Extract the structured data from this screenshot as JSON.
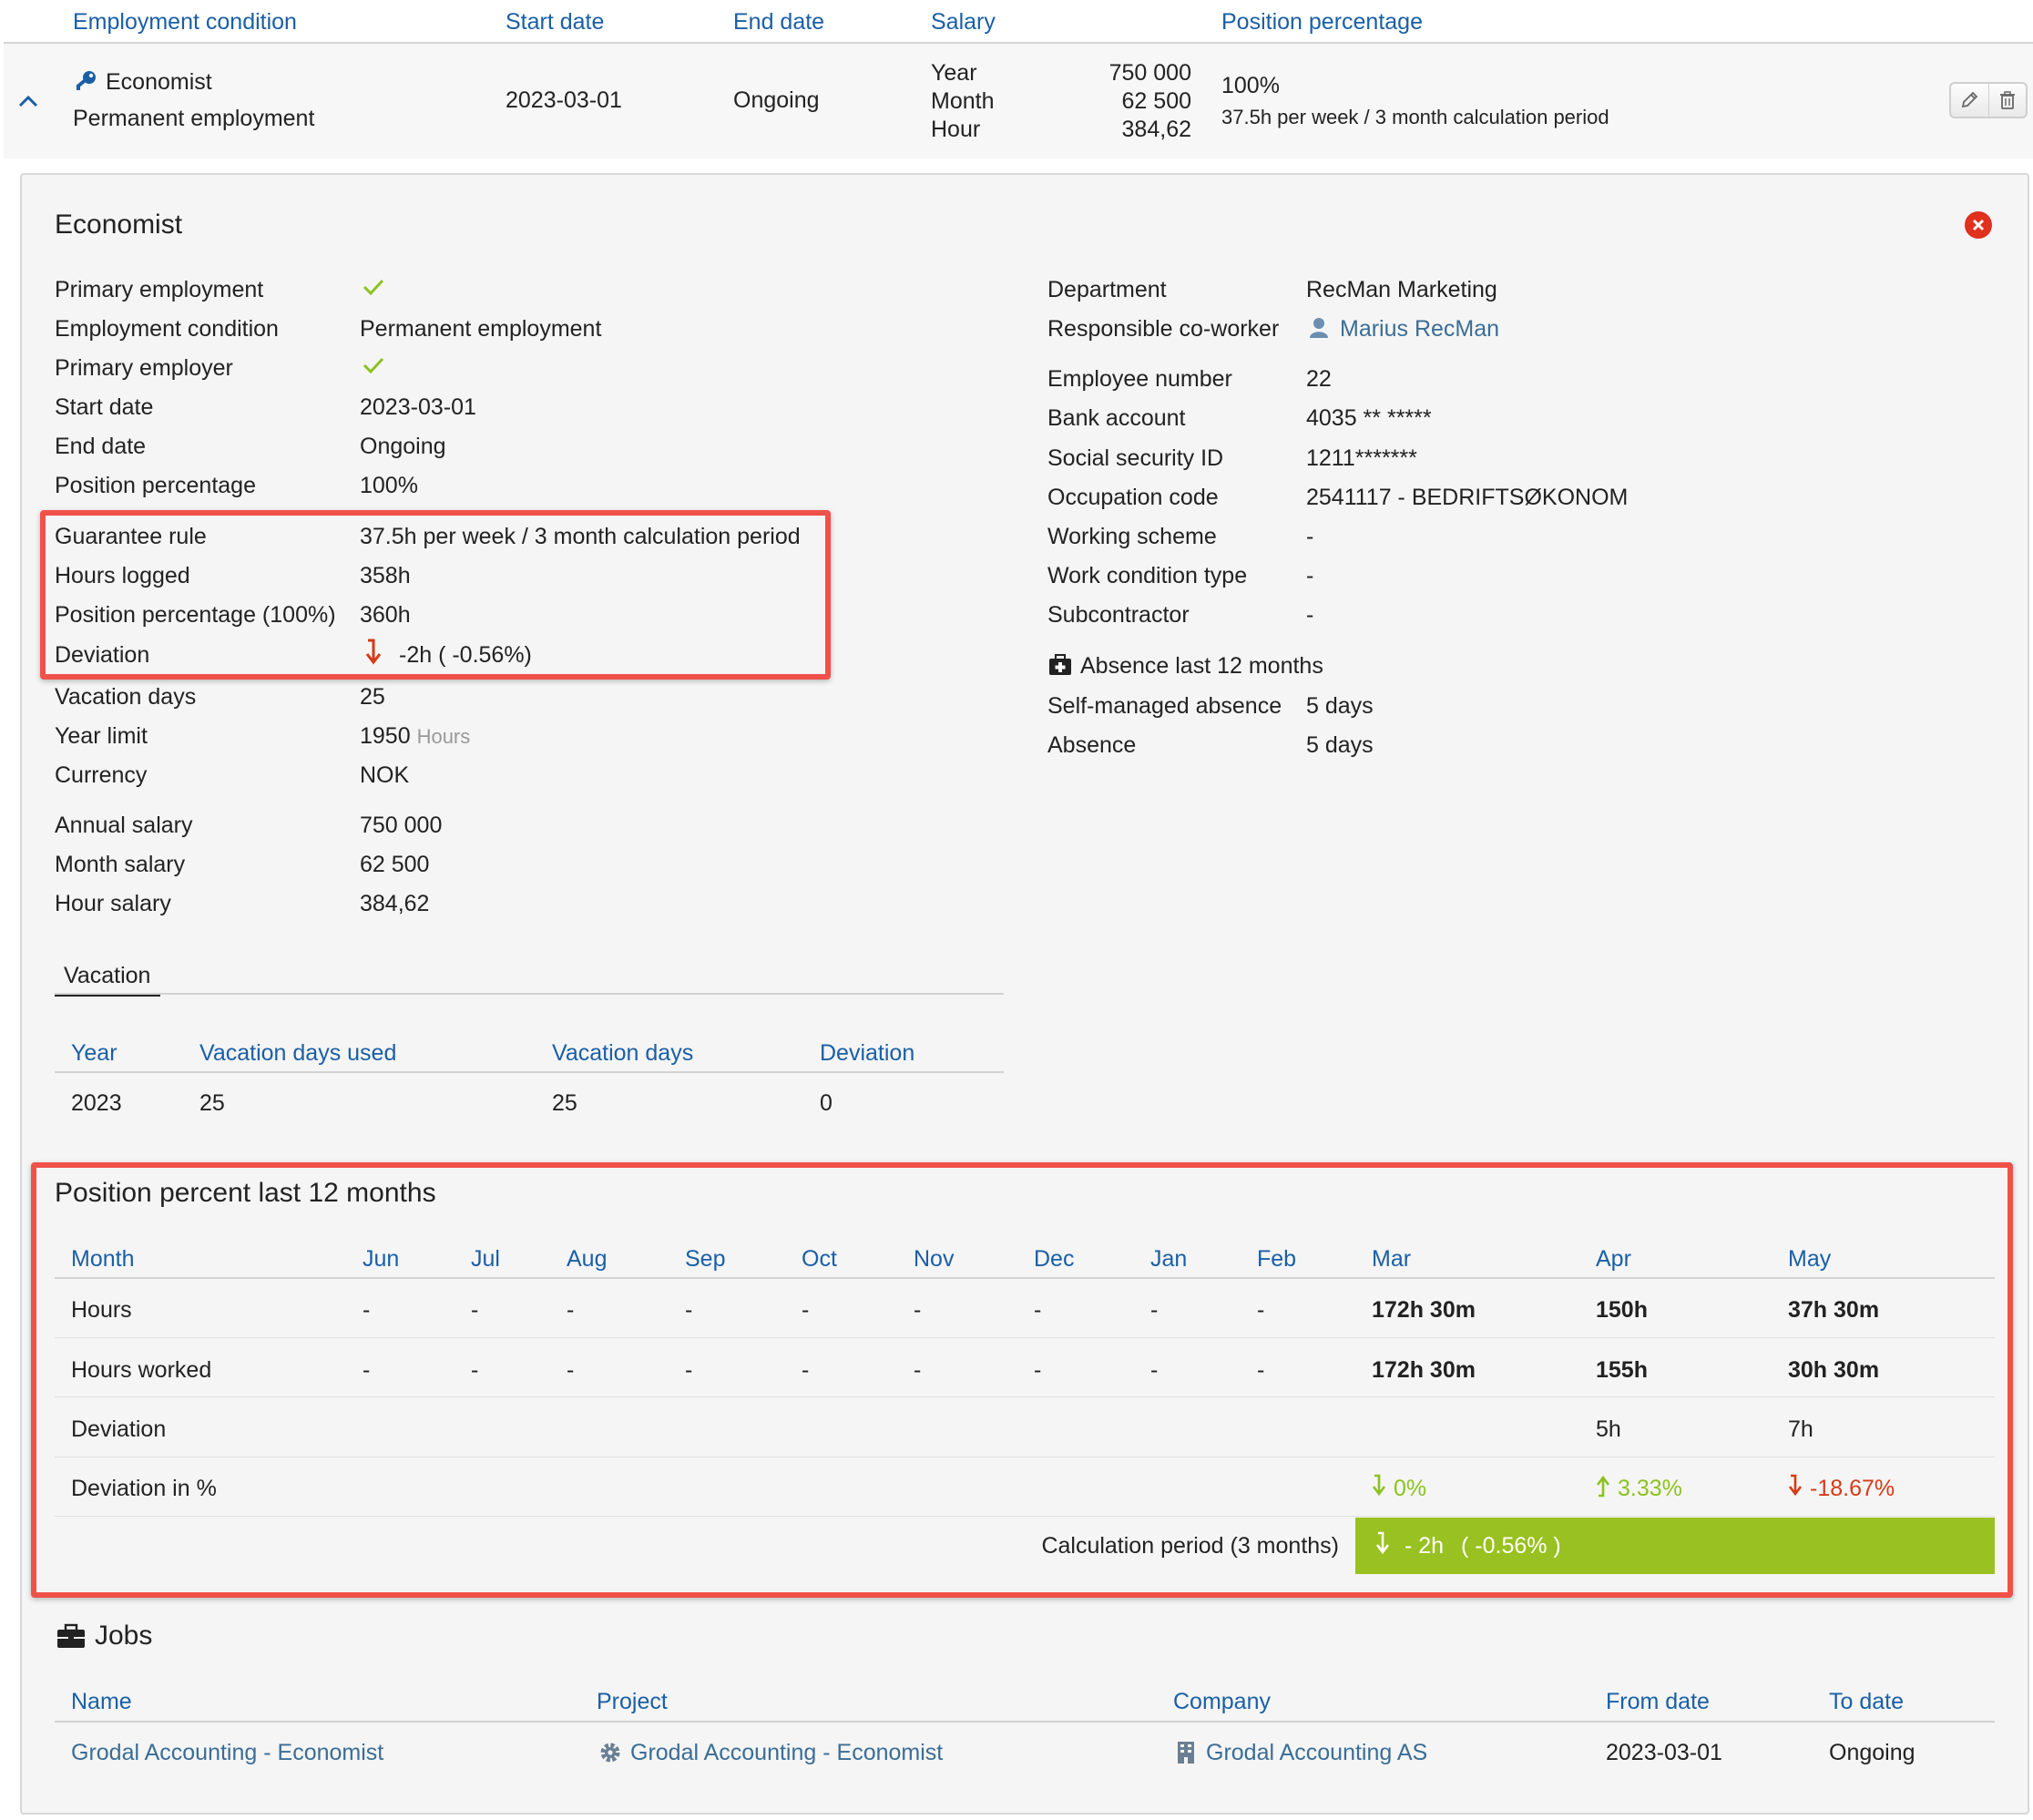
{
  "summary_header": {
    "employment_condition": "Employment condition",
    "start_date": "Start date",
    "end_date": "End date",
    "salary": "Salary",
    "position_percentage": "Position percentage"
  },
  "summary_row": {
    "title": "Economist",
    "subtitle": "Permanent employment",
    "start_date": "2023-03-01",
    "end_date": "Ongoing",
    "salary_labels": [
      "Year",
      "Month",
      "Hour"
    ],
    "salary_values": [
      "750 000",
      "62 500",
      "384,62"
    ],
    "position_percentage": "100%",
    "guarantee": "37.5h per week / 3 month calculation period"
  },
  "panel": {
    "title": "Economist",
    "left_fields": [
      {
        "label": "Primary employment",
        "value": ""
      },
      {
        "label": "Employment condition",
        "value": "Permanent employment"
      },
      {
        "label": "Primary employer",
        "value": ""
      },
      {
        "label": "Start date",
        "value": "2023-03-01"
      },
      {
        "label": "End date",
        "value": "Ongoing"
      },
      {
        "label": "Position percentage",
        "value": "100%"
      },
      {
        "label": "Guarantee rule",
        "value": "37.5h per week / 3 month calculation period"
      },
      {
        "label": "Hours logged",
        "value": "358h"
      },
      {
        "label": "Position percentage (100%)",
        "value": "360h"
      },
      {
        "label": "Deviation",
        "value": "-2h ( -0.56%)"
      },
      {
        "label": "Vacation days",
        "value": "25"
      },
      {
        "label": "Year limit",
        "value": "1950",
        "unit": "Hours"
      },
      {
        "label": "Currency",
        "value": "NOK"
      },
      {
        "label": "Annual salary",
        "value": "750 000"
      },
      {
        "label": "Month salary",
        "value": "62 500"
      },
      {
        "label": "Hour salary",
        "value": "384,62"
      }
    ],
    "right_fields": [
      {
        "label": "Department",
        "value": "RecMan Marketing"
      },
      {
        "label": "Responsible co-worker",
        "value": "Marius RecMan"
      },
      {
        "label": "Employee number",
        "value": "22"
      },
      {
        "label": "Bank account",
        "value": "4035 ** *****"
      },
      {
        "label": "Social security ID",
        "value": "1211*******"
      },
      {
        "label": "Occupation code",
        "value": "2541117 - BEDRIFTSØKONOM"
      },
      {
        "label": "Working scheme",
        "value": "-"
      },
      {
        "label": "Work condition type",
        "value": "-"
      },
      {
        "label": "Subcontractor",
        "value": "-"
      }
    ],
    "absence": {
      "title": "Absence last 12 months",
      "rows": [
        {
          "label": "Self-managed absence",
          "value": "5 days"
        },
        {
          "label": "Absence",
          "value": "5 days"
        }
      ]
    }
  },
  "vacation": {
    "tab_label": "Vacation",
    "headers": [
      "Year",
      "Vacation days used",
      "Vacation days",
      "Deviation"
    ],
    "row": [
      "2023",
      "25",
      "25",
      "0"
    ]
  },
  "position_percent": {
    "title": "Position percent last 12 months",
    "month_header": "Month",
    "months": [
      "Jun",
      "Jul",
      "Aug",
      "Sep",
      "Oct",
      "Nov",
      "Dec",
      "Jan",
      "Feb",
      "Mar",
      "Apr",
      "May"
    ],
    "rows": [
      {
        "label": "Hours",
        "values": [
          "-",
          "-",
          "-",
          "-",
          "-",
          "-",
          "-",
          "-",
          "-",
          "172h 30m",
          "150h",
          "37h 30m"
        ]
      },
      {
        "label": "Hours worked",
        "values": [
          "-",
          "-",
          "-",
          "-",
          "-",
          "-",
          "-",
          "-",
          "-",
          "172h 30m",
          "155h",
          "30h 30m"
        ]
      },
      {
        "label": "Deviation",
        "values": [
          "",
          "",
          "",
          "",
          "",
          "",
          "",
          "",
          "",
          "",
          "5h",
          "7h"
        ]
      },
      {
        "label": "Deviation in %",
        "values": [
          "",
          "",
          "",
          "",
          "",
          "",
          "",
          "",
          "",
          "0%",
          "3.33%",
          "-18.67%"
        ]
      }
    ],
    "calc_label": "Calculation period (3 months)",
    "calc_value": "- 2h",
    "calc_percent": "( -0.56% )",
    "colors": {
      "green": "#8cc21f",
      "red": "#d63a16",
      "bar": "#98c121"
    }
  },
  "jobs": {
    "title": "Jobs",
    "headers": [
      "Name",
      "Project",
      "Company",
      "From date",
      "To date"
    ],
    "row": {
      "name": "Grodal Accounting - Economist",
      "project": "Grodal Accounting - Economist",
      "company": "Grodal Accounting AS",
      "from_date": "2023-03-01",
      "to_date": "Ongoing"
    }
  }
}
